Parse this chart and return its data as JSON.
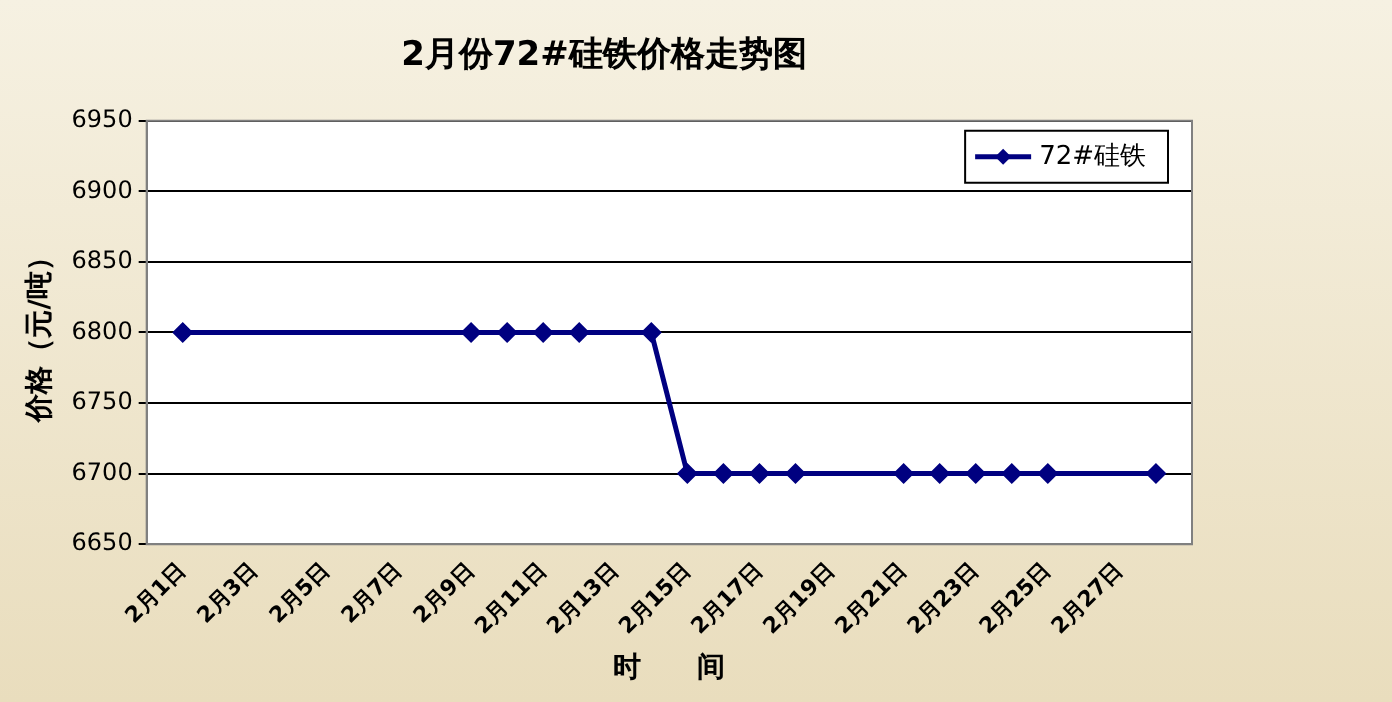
{
  "chart_data": {
    "type": "line",
    "title": "2月份72#硅铁价格走势图",
    "xlabel": "时　　间",
    "ylabel": "价格（元/吨）",
    "categories": [
      null,
      "2月1日",
      null,
      "2月3日",
      null,
      "2月5日",
      null,
      "2月7日",
      null,
      "2月9日",
      null,
      "2月11日",
      null,
      "2月13日",
      null,
      "2月15日",
      null,
      "2月17日",
      null,
      "2月19日",
      null,
      "2月21日",
      null,
      "2月23日",
      null,
      "2月25日",
      null,
      "2月27日",
      null,
      null
    ],
    "series": [
      {
        "name": "72#硅铁",
        "color": "#000080",
        "values": [
          null,
          6800,
          null,
          null,
          null,
          null,
          null,
          null,
          null,
          6800,
          6800,
          6800,
          6800,
          null,
          6800,
          6700,
          6700,
          6700,
          6700,
          null,
          null,
          6700,
          6700,
          6700,
          6700,
          6700,
          null,
          null,
          6700,
          null
        ]
      }
    ],
    "ylim": [
      6650,
      6950
    ],
    "yticks": [
      6650,
      6700,
      6750,
      6800,
      6850,
      6900,
      6950
    ],
    "grid": "y",
    "legend": "top right",
    "marker": "diamond",
    "line_style": "solid"
  }
}
